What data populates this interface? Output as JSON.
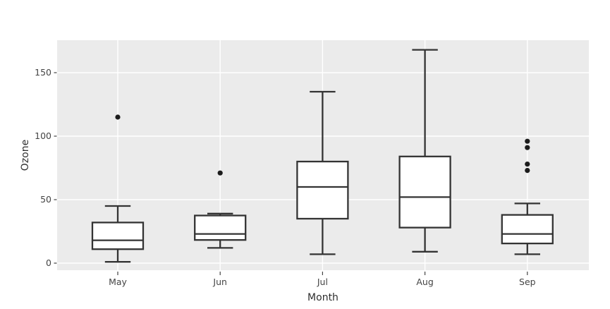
{
  "figure": {
    "background": "#ffffff",
    "panel_background": "#ebebeb",
    "grid_color": "#ffffff",
    "box_line_color": "#333333",
    "box_fill_color": "#ffffff",
    "outlier_color": "#1c1c1c",
    "tick_color": "#444444",
    "tick_label_color": "#444444",
    "axis_title_color": "#2e2e2e"
  },
  "chart_data": {
    "type": "boxplot",
    "title": "",
    "xlabel": "Month",
    "ylabel": "Ozone",
    "categories": [
      "May",
      "Jun",
      "Jul",
      "Aug",
      "Sep"
    ],
    "y_ticks": [
      0,
      50,
      100,
      150
    ],
    "ylim": [
      -6,
      176
    ],
    "grid": true,
    "legend": "none",
    "series": [
      {
        "category": "May",
        "whisker_low": 1,
        "q1": 11,
        "median": 18,
        "q3": 32,
        "whisker_high": 45,
        "outliers": [
          115
        ]
      },
      {
        "category": "Jun",
        "whisker_low": 12,
        "q1": 18.25,
        "median": 23,
        "q3": 37.5,
        "whisker_high": 39,
        "outliers": [
          71
        ]
      },
      {
        "category": "Jul",
        "whisker_low": 7,
        "q1": 35,
        "median": 60,
        "q3": 80,
        "whisker_high": 135,
        "outliers": []
      },
      {
        "category": "Aug",
        "whisker_low": 9,
        "q1": 28,
        "median": 52,
        "q3": 84,
        "whisker_high": 168,
        "outliers": []
      },
      {
        "category": "Sep",
        "whisker_low": 7,
        "q1": 15.5,
        "median": 23,
        "q3": 38,
        "whisker_high": 47,
        "outliers": [
          73,
          78,
          91,
          96
        ]
      }
    ]
  }
}
